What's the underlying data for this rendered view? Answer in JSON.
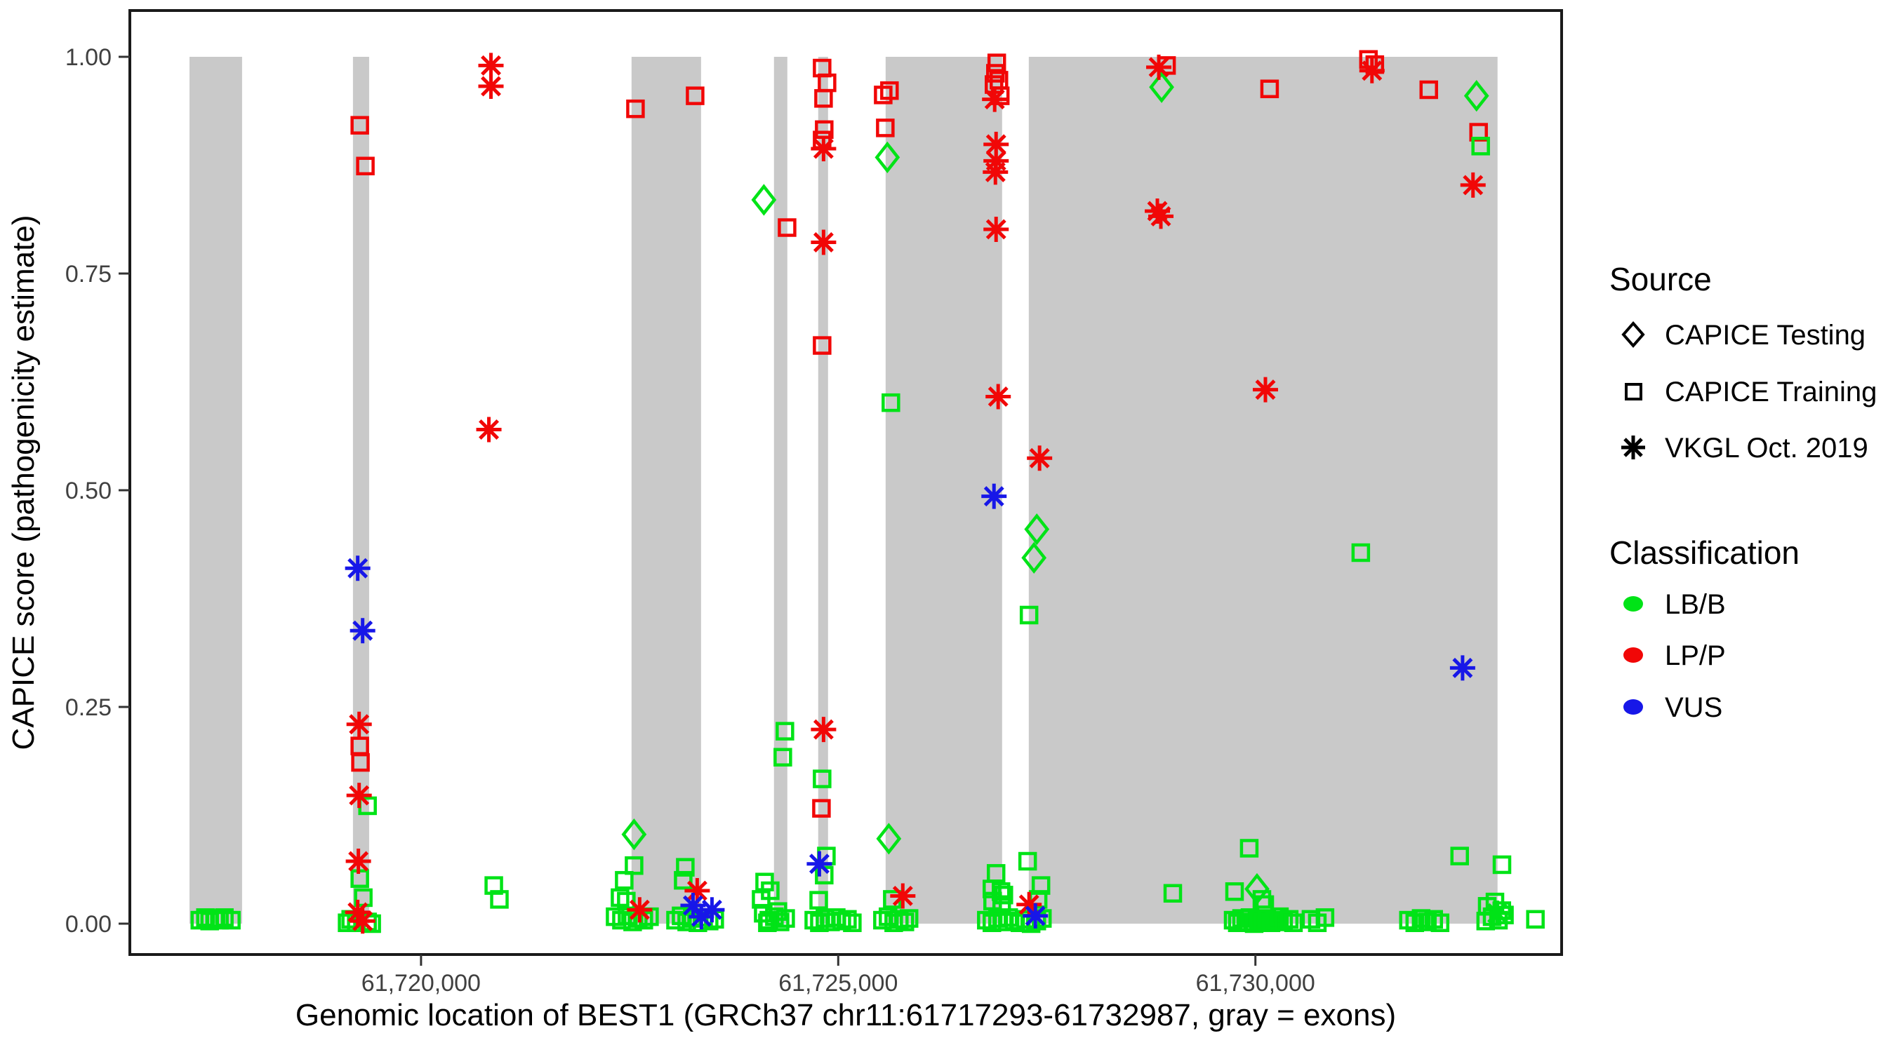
{
  "chart_data": {
    "type": "scatter",
    "xlabel": "Genomic location of BEST1 (GRCh37 chr11:61717293-61732987, gray = exons)",
    "ylabel": "CAPICE score (pathogenicity estimate)",
    "x_domain": [
      61716510,
      61733670
    ],
    "y_domain": [
      0,
      1
    ],
    "x_ticks": [
      {
        "pos": 61720000,
        "label": "61,720,000"
      },
      {
        "pos": 61725000,
        "label": "61,725,000"
      },
      {
        "pos": 61730000,
        "label": "61,730,000"
      }
    ],
    "y_ticks": [
      {
        "v": 0.0,
        "label": "0.00"
      },
      {
        "v": 0.25,
        "label": "0.25"
      },
      {
        "v": 0.5,
        "label": "0.50"
      },
      {
        "v": 0.75,
        "label": "0.75"
      },
      {
        "v": 1.0,
        "label": "1.00"
      }
    ],
    "grid": false,
    "exons_note": "gray bands span full 0-1 score range",
    "exons": [
      [
        61717225,
        61717855
      ],
      [
        61719184,
        61719378
      ],
      [
        61722523,
        61723356
      ],
      [
        61724230,
        61724390
      ],
      [
        61724760,
        61724878
      ],
      [
        61725568,
        61726964
      ],
      [
        61727284,
        61732902
      ]
    ],
    "colors": {
      "LBB": "#00e317",
      "LPP": "#f10707",
      "VUS": "#1717e8",
      "exon": "#c9c9c9",
      "axis_text": "#404040",
      "panel_border": "#1a1a1a"
    },
    "points_format": [
      "genomic_position",
      "capice_score",
      "source: t=CAPICE Training(square) d=CAPICE Testing(diamond) v=VKGL(asterisk)",
      "classification: g=LB/B r=LP/P b=VUS"
    ],
    "points": [
      [
        61717349,
        0.004,
        "t",
        "g"
      ],
      [
        61717416,
        0.007,
        "t",
        "g"
      ],
      [
        61717467,
        0.003,
        "t",
        "g"
      ],
      [
        61717526,
        0.006,
        "t",
        "g"
      ],
      [
        61717584,
        0.004,
        "t",
        "g"
      ],
      [
        61717643,
        0.007,
        "t",
        "g"
      ],
      [
        61717727,
        0.004,
        "t",
        "g"
      ],
      [
        61719266,
        0.921,
        "t",
        "r"
      ],
      [
        61719333,
        0.874,
        "t",
        "r"
      ],
      [
        61719241,
        0.41,
        "v",
        "b"
      ],
      [
        61719300,
        0.338,
        "v",
        "b"
      ],
      [
        61719258,
        0.23,
        "v",
        "r"
      ],
      [
        61719266,
        0.205,
        "t",
        "r"
      ],
      [
        61719274,
        0.186,
        "t",
        "r"
      ],
      [
        61719258,
        0.148,
        "v",
        "r"
      ],
      [
        61719359,
        0.136,
        "t",
        "g"
      ],
      [
        61719249,
        0.072,
        "v",
        "r"
      ],
      [
        61719266,
        0.052,
        "t",
        "g"
      ],
      [
        61719308,
        0.03,
        "t",
        "g"
      ],
      [
        61719241,
        0.013,
        "v",
        "r"
      ],
      [
        61719300,
        0.003,
        "v",
        "r"
      ],
      [
        61719157,
        0.005,
        "t",
        "g"
      ],
      [
        61719224,
        0.001,
        "t",
        "g"
      ],
      [
        61719359,
        0.002,
        "t",
        "g"
      ],
      [
        61719409,
        0.0,
        "t",
        "g"
      ],
      [
        61719114,
        0.001,
        "t",
        "g"
      ],
      [
        61720838,
        0.99,
        "v",
        "r"
      ],
      [
        61720838,
        0.966,
        "v",
        "r"
      ],
      [
        61720813,
        0.57,
        "v",
        "r"
      ],
      [
        61720872,
        0.044,
        "t",
        "g"
      ],
      [
        61720939,
        0.028,
        "t",
        "g"
      ],
      [
        61722570,
        0.94,
        "t",
        "r"
      ],
      [
        61723285,
        0.955,
        "t",
        "r"
      ],
      [
        61722553,
        0.103,
        "d",
        "g"
      ],
      [
        61722553,
        0.067,
        "t",
        "g"
      ],
      [
        61722435,
        0.05,
        "t",
        "g"
      ],
      [
        61722385,
        0.03,
        "t",
        "g"
      ],
      [
        61722460,
        0.026,
        "t",
        "g"
      ],
      [
        61722620,
        0.016,
        "v",
        "r"
      ],
      [
        61722326,
        0.008,
        "t",
        "g"
      ],
      [
        61722402,
        0.004,
        "t",
        "g"
      ],
      [
        61722469,
        0.009,
        "t",
        "g"
      ],
      [
        61722536,
        0.002,
        "t",
        "g"
      ],
      [
        61722603,
        0.006,
        "t",
        "g"
      ],
      [
        61722670,
        0.004,
        "t",
        "g"
      ],
      [
        61722738,
        0.008,
        "t",
        "g"
      ],
      [
        61723310,
        0.038,
        "v",
        "r"
      ],
      [
        61723260,
        0.021,
        "v",
        "b"
      ],
      [
        61723487,
        0.016,
        "v",
        "b"
      ],
      [
        61723360,
        0.008,
        "v",
        "b"
      ],
      [
        61723167,
        0.065,
        "t",
        "g"
      ],
      [
        61723142,
        0.05,
        "t",
        "g"
      ],
      [
        61723050,
        0.004,
        "t",
        "g"
      ],
      [
        61723117,
        0.009,
        "t",
        "g"
      ],
      [
        61723184,
        0.002,
        "t",
        "g"
      ],
      [
        61723251,
        0.006,
        "t",
        "g"
      ],
      [
        61723318,
        0.001,
        "t",
        "g"
      ],
      [
        61723386,
        0.007,
        "t",
        "g"
      ],
      [
        61723453,
        0.003,
        "t",
        "g"
      ],
      [
        61723520,
        0.005,
        "t",
        "g"
      ],
      [
        61724109,
        0.835,
        "d",
        "g"
      ],
      [
        61724387,
        0.803,
        "t",
        "r"
      ],
      [
        61724361,
        0.222,
        "t",
        "g"
      ],
      [
        61724336,
        0.192,
        "t",
        "g"
      ],
      [
        61724118,
        0.048,
        "t",
        "g"
      ],
      [
        61724185,
        0.038,
        "t",
        "g"
      ],
      [
        61724076,
        0.028,
        "t",
        "g"
      ],
      [
        61724101,
        0.012,
        "t",
        "g"
      ],
      [
        61724168,
        0.004,
        "t",
        "g"
      ],
      [
        61724235,
        0.008,
        "t",
        "g"
      ],
      [
        61724303,
        0.002,
        "t",
        "g"
      ],
      [
        61724370,
        0.006,
        "t",
        "g"
      ],
      [
        61724277,
        0.014,
        "t",
        "g"
      ],
      [
        61724151,
        0.001,
        "t",
        "g"
      ],
      [
        61724807,
        0.987,
        "t",
        "r"
      ],
      [
        61724866,
        0.97,
        "t",
        "r"
      ],
      [
        61724824,
        0.952,
        "t",
        "r"
      ],
      [
        61724832,
        0.916,
        "t",
        "r"
      ],
      [
        61724807,
        0.904,
        "t",
        "r"
      ],
      [
        61724824,
        0.894,
        "v",
        "r"
      ],
      [
        61724824,
        0.786,
        "v",
        "r"
      ],
      [
        61724807,
        0.667,
        "t",
        "r"
      ],
      [
        61724824,
        0.224,
        "v",
        "r"
      ],
      [
        61724807,
        0.167,
        "t",
        "g"
      ],
      [
        61724799,
        0.133,
        "t",
        "r"
      ],
      [
        61724858,
        0.078,
        "t",
        "g"
      ],
      [
        61724774,
        0.069,
        "v",
        "b"
      ],
      [
        61724832,
        0.056,
        "t",
        "g"
      ],
      [
        61724766,
        0.027,
        "t",
        "g"
      ],
      [
        61724707,
        0.004,
        "t",
        "g"
      ],
      [
        61724774,
        0.001,
        "t",
        "g"
      ],
      [
        61724841,
        0.006,
        "t",
        "g"
      ],
      [
        61724908,
        0.002,
        "t",
        "g"
      ],
      [
        61724976,
        0.007,
        "t",
        "g"
      ],
      [
        61725043,
        0.003,
        "t",
        "g"
      ],
      [
        61725110,
        0.005,
        "t",
        "g"
      ],
      [
        61725169,
        0.001,
        "t",
        "g"
      ],
      [
        61725539,
        0.956,
        "t",
        "r"
      ],
      [
        61725614,
        0.961,
        "t",
        "r"
      ],
      [
        61725564,
        0.918,
        "t",
        "r"
      ],
      [
        61725589,
        0.884,
        "d",
        "g"
      ],
      [
        61725631,
        0.601,
        "t",
        "g"
      ],
      [
        61725606,
        0.098,
        "d",
        "g"
      ],
      [
        61725774,
        0.032,
        "v",
        "r"
      ],
      [
        61725648,
        0.028,
        "t",
        "g"
      ],
      [
        61725530,
        0.004,
        "t",
        "g"
      ],
      [
        61725597,
        0.008,
        "t",
        "g"
      ],
      [
        61725665,
        0.001,
        "t",
        "g"
      ],
      [
        61725732,
        0.005,
        "t",
        "g"
      ],
      [
        61725799,
        0.002,
        "t",
        "g"
      ],
      [
        61725849,
        0.006,
        "t",
        "g"
      ],
      [
        61726900,
        0.993,
        "t",
        "r"
      ],
      [
        61726884,
        0.981,
        "t",
        "r"
      ],
      [
        61726926,
        0.973,
        "t",
        "r"
      ],
      [
        61726867,
        0.968,
        "t",
        "r"
      ],
      [
        61726942,
        0.955,
        "t",
        "r"
      ],
      [
        61726875,
        0.951,
        "v",
        "r"
      ],
      [
        61726892,
        0.899,
        "v",
        "r"
      ],
      [
        61726892,
        0.88,
        "v",
        "r"
      ],
      [
        61726884,
        0.867,
        "v",
        "r"
      ],
      [
        61726892,
        0.801,
        "v",
        "r"
      ],
      [
        61726917,
        0.608,
        "v",
        "r"
      ],
      [
        61727413,
        0.537,
        "v",
        "r"
      ],
      [
        61726867,
        0.493,
        "v",
        "b"
      ],
      [
        61727380,
        0.455,
        "d",
        "g"
      ],
      [
        61727346,
        0.422,
        "d",
        "g"
      ],
      [
        61727287,
        0.356,
        "t",
        "g"
      ],
      [
        61727270,
        0.072,
        "t",
        "g"
      ],
      [
        61726892,
        0.058,
        "t",
        "g"
      ],
      [
        61727430,
        0.044,
        "t",
        "g"
      ],
      [
        61726842,
        0.04,
        "t",
        "g"
      ],
      [
        61726951,
        0.037,
        "t",
        "g"
      ],
      [
        61726985,
        0.033,
        "t",
        "g"
      ],
      [
        61726850,
        0.026,
        "t",
        "g"
      ],
      [
        61726959,
        0.022,
        "t",
        "g"
      ],
      [
        61727396,
        0.028,
        "t",
        "g"
      ],
      [
        61727287,
        0.022,
        "v",
        "r"
      ],
      [
        61727363,
        0.009,
        "v",
        "b"
      ],
      [
        61726775,
        0.004,
        "t",
        "g"
      ],
      [
        61726842,
        0.001,
        "t",
        "g"
      ],
      [
        61726909,
        0.006,
        "t",
        "g"
      ],
      [
        61726976,
        0.002,
        "t",
        "g"
      ],
      [
        61727043,
        0.007,
        "t",
        "g"
      ],
      [
        61727110,
        0.003,
        "t",
        "g"
      ],
      [
        61727178,
        0.001,
        "t",
        "g"
      ],
      [
        61727245,
        0.005,
        "t",
        "g"
      ],
      [
        61727312,
        0.0,
        "t",
        "g"
      ],
      [
        61727380,
        0.003,
        "t",
        "g"
      ],
      [
        61727447,
        0.006,
        "t",
        "g"
      ],
      [
        61728842,
        0.988,
        "v",
        "r"
      ],
      [
        61728935,
        0.99,
        "t",
        "r"
      ],
      [
        61728876,
        0.965,
        "d",
        "g"
      ],
      [
        61728825,
        0.822,
        "v",
        "r"
      ],
      [
        61728867,
        0.816,
        "v",
        "r"
      ],
      [
        61729010,
        0.035,
        "t",
        "g"
      ],
      [
        61730170,
        0.963,
        "t",
        "r"
      ],
      [
        61730120,
        0.616,
        "v",
        "r"
      ],
      [
        61731263,
        0.428,
        "t",
        "g"
      ],
      [
        61729926,
        0.087,
        "t",
        "g"
      ],
      [
        61729750,
        0.037,
        "t",
        "g"
      ],
      [
        61730019,
        0.04,
        "d",
        "g"
      ],
      [
        61730078,
        0.028,
        "t",
        "g"
      ],
      [
        61730112,
        0.022,
        "t",
        "g"
      ],
      [
        61729733,
        0.004,
        "t",
        "g"
      ],
      [
        61729783,
        0.001,
        "t",
        "g"
      ],
      [
        61729834,
        0.006,
        "t",
        "g"
      ],
      [
        61729884,
        0.002,
        "t",
        "g"
      ],
      [
        61729935,
        0.007,
        "t",
        "g"
      ],
      [
        61729985,
        0.0,
        "t",
        "g"
      ],
      [
        61730035,
        0.005,
        "t",
        "g"
      ],
      [
        61730086,
        0.002,
        "t",
        "g"
      ],
      [
        61730136,
        0.006,
        "t",
        "g"
      ],
      [
        61730187,
        0.001,
        "t",
        "g"
      ],
      [
        61730237,
        0.004,
        "t",
        "g"
      ],
      [
        61730288,
        0.008,
        "t",
        "g"
      ],
      [
        61730338,
        0.002,
        "t",
        "g"
      ],
      [
        61730405,
        0.005,
        "t",
        "g"
      ],
      [
        61730456,
        0.001,
        "t",
        "g"
      ],
      [
        61730666,
        0.005,
        "t",
        "g"
      ],
      [
        61730742,
        0.001,
        "t",
        "g"
      ],
      [
        61730834,
        0.007,
        "t",
        "g"
      ],
      [
        61731355,
        0.997,
        "t",
        "r"
      ],
      [
        61731431,
        0.991,
        "t",
        "r"
      ],
      [
        61731397,
        0.984,
        "v",
        "r"
      ],
      [
        61732078,
        0.962,
        "t",
        "r"
      ],
      [
        61732650,
        0.955,
        "d",
        "g"
      ],
      [
        61732675,
        0.913,
        "t",
        "r"
      ],
      [
        61732700,
        0.897,
        "t",
        "g"
      ],
      [
        61732608,
        0.852,
        "v",
        "r"
      ],
      [
        61732483,
        0.295,
        "v",
        "b"
      ],
      [
        61732448,
        0.078,
        "t",
        "g"
      ],
      [
        61731834,
        0.004,
        "t",
        "g"
      ],
      [
        61731910,
        0.001,
        "t",
        "g"
      ],
      [
        61731986,
        0.006,
        "t",
        "g"
      ],
      [
        61732061,
        0.002,
        "t",
        "g"
      ],
      [
        61732137,
        0.005,
        "t",
        "g"
      ],
      [
        61732213,
        0.001,
        "t",
        "g"
      ],
      [
        61732955,
        0.068,
        "t",
        "g"
      ],
      [
        61732778,
        0.02,
        "t",
        "g"
      ],
      [
        61732871,
        0.025,
        "t",
        "g"
      ],
      [
        61732953,
        0.015,
        "t",
        "g"
      ],
      [
        61732837,
        0.008,
        "t",
        "g"
      ],
      [
        61732913,
        0.004,
        "t",
        "g"
      ],
      [
        61732985,
        0.01,
        "t",
        "g"
      ],
      [
        61732760,
        0.003,
        "t",
        "g"
      ],
      [
        61732900,
        0.012,
        "v",
        "g"
      ],
      [
        61733356,
        0.005,
        "t",
        "g"
      ]
    ]
  },
  "legend": {
    "source_title": "Source",
    "source_items": [
      {
        "label": "CAPICE Testing",
        "marker": "diamond"
      },
      {
        "label": "CAPICE Training",
        "marker": "square"
      },
      {
        "label": "VKGL Oct. 2019",
        "marker": "asterisk"
      }
    ],
    "classification_title": "Classification",
    "classification_items": [
      {
        "label": "LB/B",
        "color": "#00e317"
      },
      {
        "label": "LP/P",
        "color": "#f10707"
      },
      {
        "label": "VUS",
        "color": "#1717e8"
      }
    ]
  }
}
